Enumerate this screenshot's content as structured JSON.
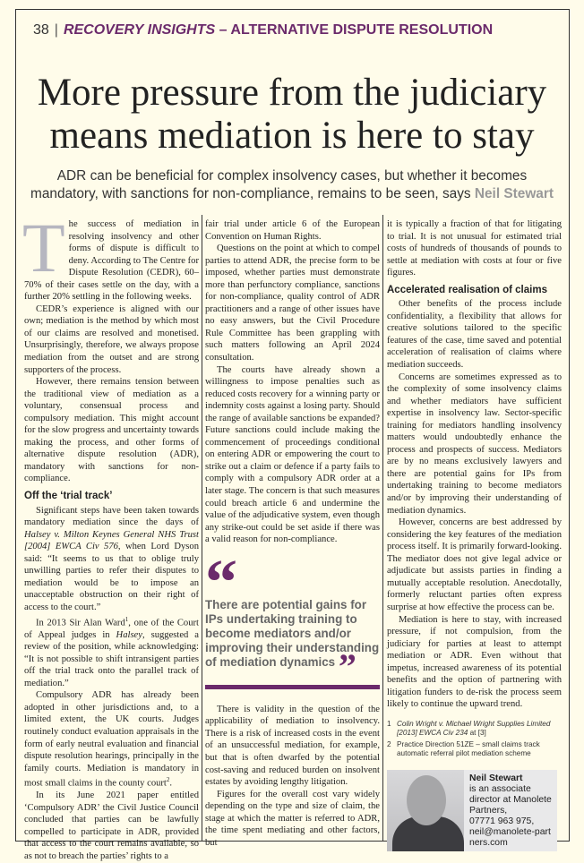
{
  "header": {
    "page_number": "38",
    "section": "RECOVERY INSIGHTS",
    "subsection": "– ALTERNATIVE DISPUTE RESOLUTION"
  },
  "title": "More pressure from the judiciary means mediation is here to stay",
  "standfirst": {
    "text": "ADR can be beneficial for complex insolvency cases, but whether it becomes mandatory, with sanctions for non-compliance, remains to be seen, says ",
    "author": "Neil Stewart"
  },
  "col1": {
    "drop_cap": "T",
    "p1": "he success of mediation in resolving insolvency and other forms of dispute is difficult to deny. According to The Centre for Dispute Resolution (CEDR), 60–70% of their cases settle on the day, with a further 20% settling in the following weeks.",
    "p2": "CEDR’s experience is aligned with our own; mediation is the method by which most of our claims are resolved and monetised. Unsurprisingly, therefore, we always propose mediation from the outset and are strong supporters of the process.",
    "p3": "However, there remains tension between the traditional view of mediation as a voluntary, consensual process and compulsory mediation. This might account for the slow progress and uncertainty towards making the process, and other forms of alternative dispute resolution (ADR), mandatory with sanctions for non-compliance.",
    "h1": "Off the ‘trial track’",
    "p4a": "Significant steps have been taken towards mandatory mediation since the days of ",
    "p4i": "Halsey v. Milton Keynes General NHS Trust [2004] EWCA Civ 576",
    "p4b": ", when Lord Dyson said: “It seems to us that to oblige truly unwilling parties to refer their disputes to mediation would be to impose an unacceptable obstruction on their right of access to the court.”",
    "p5a": "In 2013 Sir Alan Ward",
    "p5sup": "1",
    "p5b": ", one of the Court of Appeal judges in ",
    "p5i": "Halsey",
    "p5c": ", suggested a review of the position, while acknowledging: “It is not possible to shift intransigent parties off the trial track onto the parallel track of mediation.”",
    "p6a": "Compulsory ADR has already been adopted in other jurisdictions and, to a limited extent, the UK courts. Judges routinely conduct evaluation appraisals in the form of early neutral evaluation and financial dispute resolution hearings, principally in the family courts. Mediation is mandatory in most small claims in the county court",
    "p6sup": "2",
    "p6b": ".",
    "p7": "In its June 2021 paper entitled ‘Compulsory ADR’ the Civil Justice Council concluded that parties can be lawfully compelled to participate in ADR, provided that access to the court remains available, so as not to breach the parties’ rights to a"
  },
  "col2": {
    "p1": "fair trial under article 6 of the European Convention on Human Rights.",
    "p2": "Questions on the point at which to compel parties to attend ADR, the precise form to be imposed, whether parties must demonstrate more than perfunctory compliance, sanctions for non-compliance, quality control of ADR practitioners and a range of other issues have no easy answers, but the Civil Procedure Rule Committee has been grappling with such matters following an April 2024 consultation.",
    "p3": "The courts have already shown a willingness to impose penalties such as reduced costs recovery for a winning party or indemnity costs against a losing party. Should the range of available sanctions be expanded? Future sanctions could include making the commencement of proceedings conditional on entering ADR or empowering the court to strike out a claim or defence if a party fails to comply with a compulsory ADR order at a later stage. The concern is that such measures could breach article 6 and undermine the value of the adjudicative system, even though any strike-out could be set aside if there was a valid reason for non-compliance.",
    "p4": "There is validity in the question of the applicability of mediation to insolvency. There is a risk of increased costs in the event of an unsuccessful mediation, for example, but that is often dwarfed by the potential cost-saving and reduced burden on insolvent estates by avoiding lengthy litigation.",
    "p5": "Figures for the overall cost vary widely depending on the type and size of claim, the stage at which the matter is referred to ADR, the time spent mediating and other factors, but"
  },
  "pull_quote": {
    "open": "“",
    "text": "There are potential gains for IPs undertaking training to become mediators and/or improving their understanding of mediation dynamics",
    "close": "”"
  },
  "col3": {
    "p1": "it is typically a fraction of that for litigating to trial. It is not unusual for estimated trial costs of hundreds of thousands of pounds to settle at mediation with costs at four or five figures.",
    "h1": "Accelerated realisation of claims",
    "p2": "Other benefits of the process include confidentiality, a flexibility that allows for creative solutions tailored to the specific features of the case, time saved and potential acceleration of realisation of claims where mediation succeeds.",
    "p3": "Concerns are sometimes expressed as to the complexity of some insolvency claims and whether mediators have sufficient expertise in insolvency law. Sector-specific training for mediators handling insolvency matters would undoubtedly enhance the process and prospects of success. Mediators are by no means exclusively lawyers and there are potential gains for IPs from undertaking training to become mediators and/or by improving their understanding of mediation dynamics.",
    "p4": "However, concerns are best addressed by considering the key features of the mediation process itself. It is primarily forward-looking. The mediator does not give legal advice or adjudicate but assists parties in finding a mutually acceptable resolution. Anecdotally, formerly reluctant parties often express surprise at how effective the process can be.",
    "p5": "Mediation is here to stay, with increased pressure, if not compulsion, from the judiciary for parties at least to attempt mediation or ADR. Even without that impetus, increased awareness of its potential benefits and the option of partnering with litigation funders to de-risk the process seem likely to continue the upward trend."
  },
  "footnotes": [
    {
      "n": "1",
      "italic": "Colin Wright v. Michael Wright Supplies Limited [2013] EWCA Civ 234",
      "rest": " at [3]"
    },
    {
      "n": "2",
      "italic": "",
      "rest": "Practice Direction 51ZE – small claims track automatic referral pilot mediation scheme"
    }
  ],
  "bio": {
    "name": "Neil Stewart",
    "line1": "is an associate director at Manolete Partners,",
    "phone": "07771 963 975,",
    "email": "neil@manolete-partners.com"
  },
  "colors": {
    "accent": "#6b2a6b",
    "background": "#fffcea",
    "drop_cap": "#b6b6c0"
  }
}
